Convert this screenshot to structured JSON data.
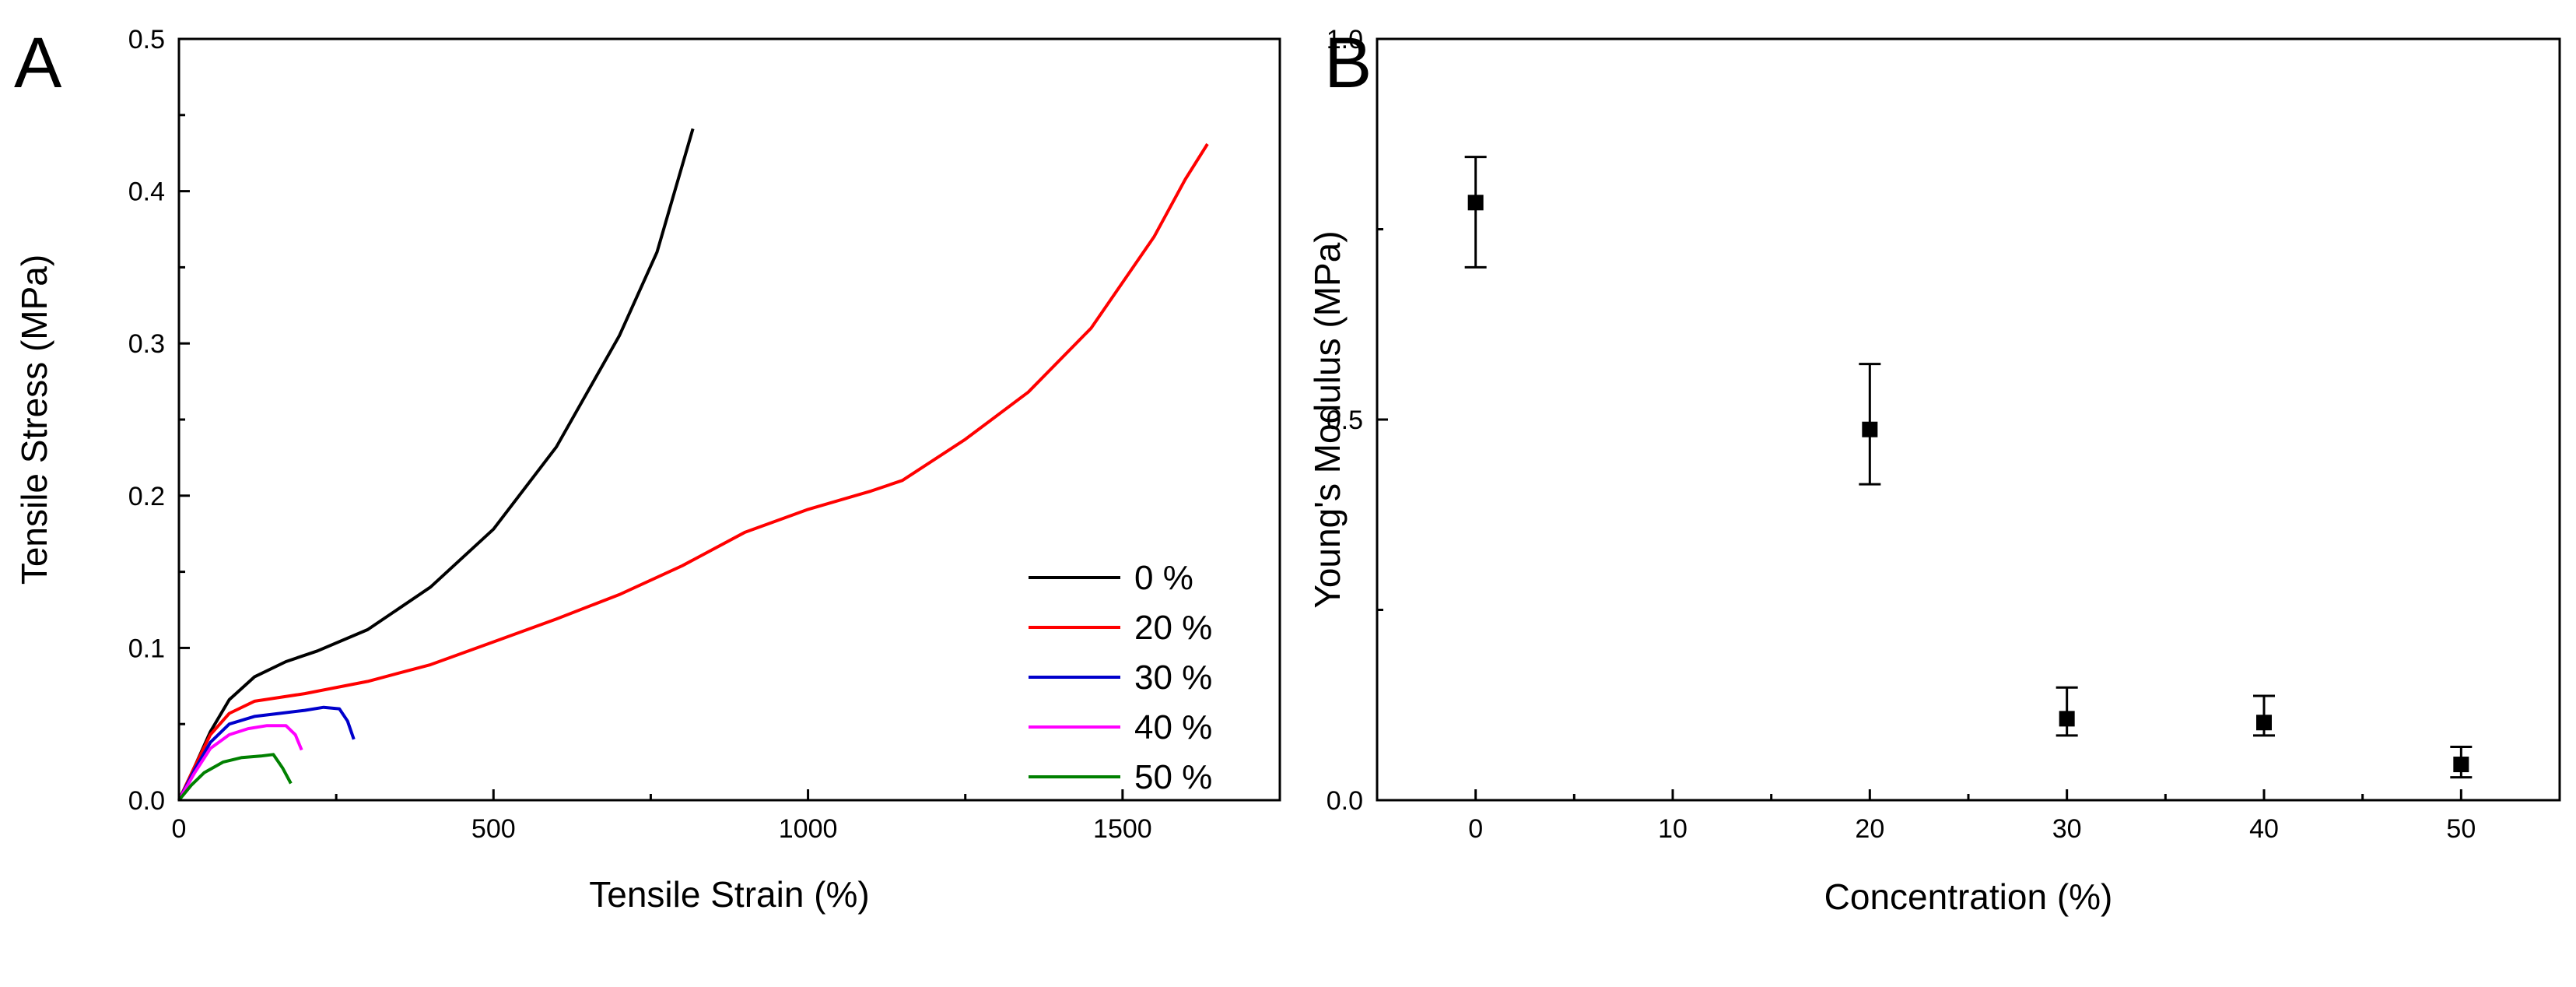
{
  "chart_data": [
    {
      "panel": "A",
      "type": "line",
      "xlabel": "Tensile Strain (%)",
      "ylabel": "Tensile Stress (MPa)",
      "xlim": [
        0,
        1750
      ],
      "ylim": [
        0,
        0.5
      ],
      "xticks": [
        0,
        500,
        1000,
        1500
      ],
      "xtick_labels": [
        "0",
        "500",
        "1000",
        "1500"
      ],
      "yticks": [
        0,
        0.1,
        0.2,
        0.3,
        0.4,
        0.5
      ],
      "ytick_labels": [
        "0.0",
        "0.1",
        "0.2",
        "0.3",
        "0.4",
        "0.5"
      ],
      "legend_position": "lower-right",
      "series": [
        {
          "name": "0 %",
          "color": "#000000",
          "x": [
            0,
            25,
            50,
            80,
            120,
            170,
            220,
            300,
            400,
            500,
            600,
            700,
            760,
            817
          ],
          "y": [
            0,
            0.022,
            0.045,
            0.066,
            0.081,
            0.091,
            0.098,
            0.112,
            0.14,
            0.178,
            0.232,
            0.305,
            0.36,
            0.441
          ]
        },
        {
          "name": "20 %",
          "color": "#ff0000",
          "x": [
            0,
            25,
            50,
            80,
            120,
            200,
            300,
            400,
            500,
            600,
            700,
            800,
            900,
            1000,
            1100,
            1150,
            1250,
            1350,
            1450,
            1550,
            1600,
            1635
          ],
          "y": [
            0,
            0.022,
            0.043,
            0.057,
            0.065,
            0.07,
            0.078,
            0.089,
            0.104,
            0.119,
            0.135,
            0.154,
            0.176,
            0.191,
            0.203,
            0.21,
            0.237,
            0.268,
            0.31,
            0.37,
            0.408,
            0.431
          ]
        },
        {
          "name": "30 %",
          "color": "#0000cc",
          "x": [
            0,
            25,
            50,
            80,
            120,
            160,
            200,
            230,
            255,
            268,
            278
          ],
          "y": [
            0,
            0.02,
            0.038,
            0.05,
            0.055,
            0.057,
            0.059,
            0.061,
            0.06,
            0.052,
            0.04
          ]
        },
        {
          "name": "40 %",
          "color": "#ff00ff",
          "x": [
            0,
            25,
            50,
            80,
            110,
            140,
            170,
            185,
            195
          ],
          "y": [
            0,
            0.018,
            0.034,
            0.043,
            0.047,
            0.049,
            0.049,
            0.043,
            0.033
          ]
        },
        {
          "name": "50 %",
          "color": "#008000",
          "x": [
            0,
            20,
            40,
            70,
            100,
            130,
            150,
            165,
            178
          ],
          "y": [
            0,
            0.01,
            0.018,
            0.025,
            0.028,
            0.029,
            0.03,
            0.021,
            0.011
          ]
        }
      ]
    },
    {
      "panel": "B",
      "type": "scatter",
      "xlabel": "Concentration (%)",
      "ylabel": "Young's Modulus (MPa)",
      "xlim": [
        -5,
        55
      ],
      "ylim": [
        0,
        1.0
      ],
      "xticks": [
        0,
        10,
        20,
        30,
        40,
        50
      ],
      "xtick_labels": [
        "0",
        "10",
        "20",
        "30",
        "40",
        "50"
      ],
      "yticks": [
        0,
        0.5,
        1.0
      ],
      "ytick_labels": [
        "0.0",
        "0.5",
        "1.0"
      ],
      "points": [
        {
          "x": 0,
          "y": 0.785,
          "err_low": 0.7,
          "err_high": 0.845
        },
        {
          "x": 20,
          "y": 0.487,
          "err_low": 0.415,
          "err_high": 0.573
        },
        {
          "x": 30,
          "y": 0.107,
          "err_low": 0.085,
          "err_high": 0.148
        },
        {
          "x": 40,
          "y": 0.102,
          "err_low": 0.085,
          "err_high": 0.137
        },
        {
          "x": 50,
          "y": 0.047,
          "err_low": 0.03,
          "err_high": 0.07
        }
      ]
    }
  ]
}
